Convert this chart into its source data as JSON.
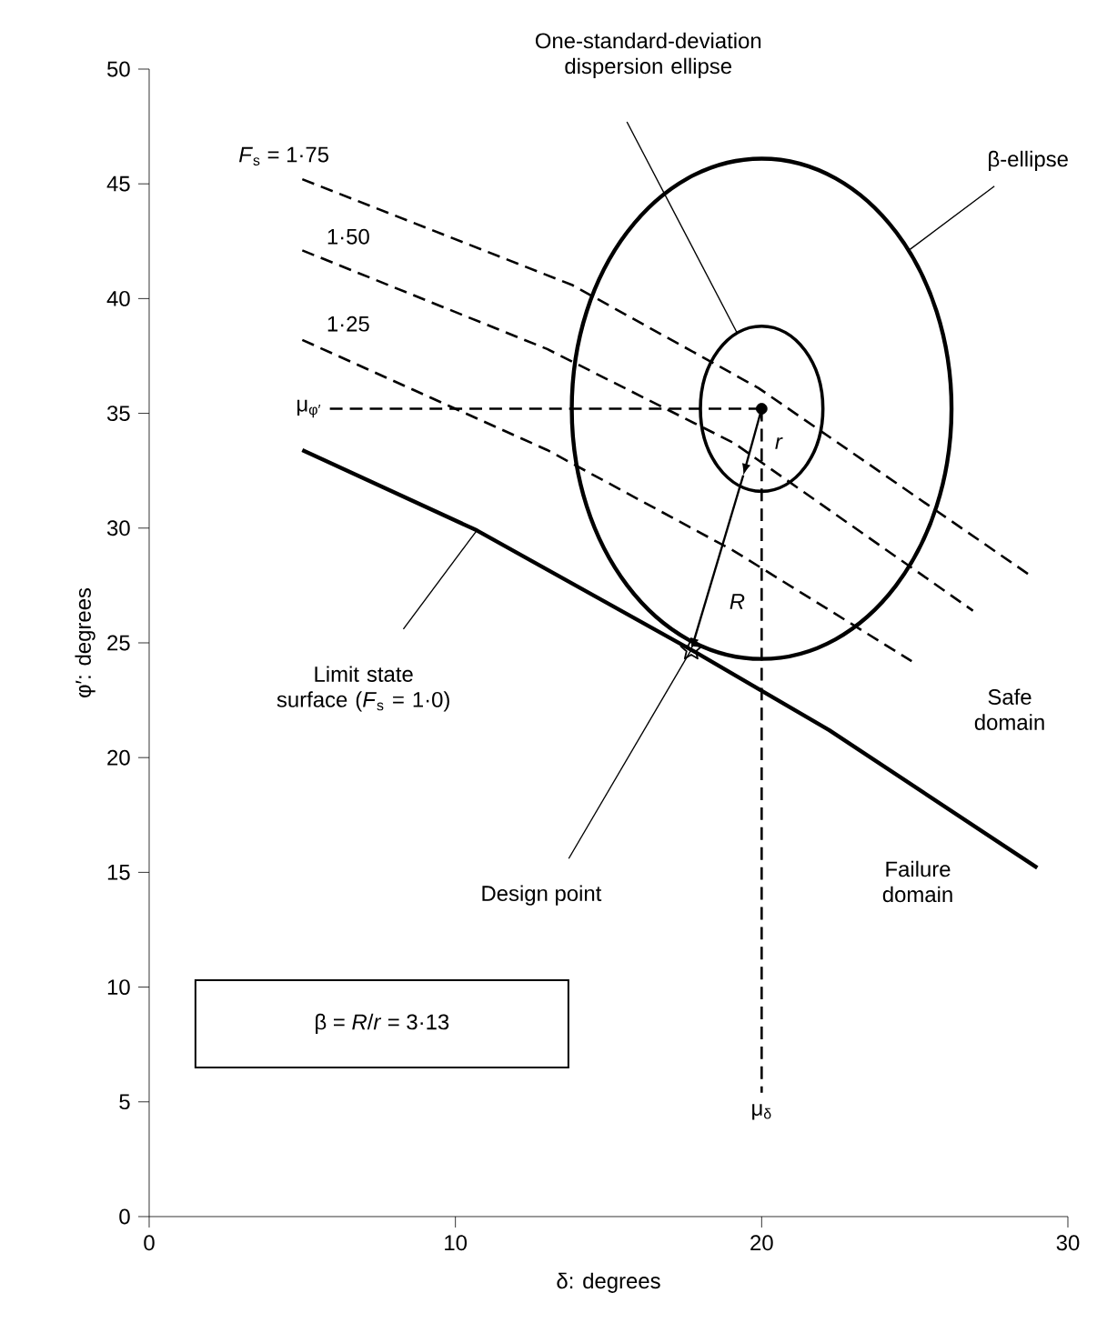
{
  "chart_data": {
    "type": "line",
    "xlabel": "δ: degrees",
    "ylabel": "φ′: degrees",
    "xlim": [
      0,
      30
    ],
    "ylim": [
      0,
      50
    ],
    "xticks": [
      0,
      10,
      20,
      30
    ],
    "yticks": [
      0,
      5,
      10,
      15,
      20,
      25,
      30,
      35,
      40,
      45,
      50
    ],
    "series": [
      {
        "name": "*F*$_{s}$ = 1·75",
        "color": "#000000",
        "line_style": "dashed",
        "x": [
          5,
          13.8,
          19.9,
          28.7
        ],
        "values": [
          45.2,
          40.6,
          36.1,
          28.0
        ]
      },
      {
        "name": "1·50",
        "color": "#000000",
        "line_style": "dashed",
        "x": [
          5,
          13,
          19.1,
          26.9
        ],
        "values": [
          42.1,
          37.8,
          33.7,
          26.4
        ]
      },
      {
        "name": "1·25",
        "color": "#000000",
        "line_style": "dashed",
        "x": [
          5,
          13,
          19.1,
          24.9
        ],
        "values": [
          38.2,
          33.4,
          29.0,
          24.2
        ]
      },
      {
        "color": "#000000",
        "line_style": "solid",
        "x": [
          5,
          10.7,
          17.7,
          22.2,
          29.0
        ],
        "values": [
          33.4,
          29.9,
          24.7,
          21.2,
          15.2
        ]
      },
      {
        "name": "μ$_{φ′}$",
        "color": "#000000",
        "line_style": "dashed",
        "x": [
          5.9,
          20
        ],
        "values": [
          35.2,
          35.2
        ]
      },
      {
        "name": "μ$_{δ}$",
        "color": "#000000",
        "line_style": "dashed",
        "x": [
          20,
          20
        ],
        "values": [
          35.2,
          5.4
        ]
      },
      {
        "type": "scatter",
        "marker": "circle",
        "color": "#000000",
        "x": [
          20
        ],
        "values": [
          35.2
        ]
      },
      {
        "type": "scatter",
        "marker": "star",
        "color": "#000000",
        "x": [
          17.7
        ],
        "values": [
          24.7
        ]
      }
    ],
    "annotations": [
      "Safe domain",
      "Failure domain",
      "β = *R*/*r* = 3·13",
      "Limit state surface (*F*$_{s}$ = 1·0)",
      "β-ellipse",
      "One-standard-deviation dispersion ellipse",
      {
        "text": "Design point",
        "x": 17.7,
        "y": 24.7
      },
      "r",
      {
        "text": "R",
        "x": 17.7,
        "y": 24.7
      }
    ]
  }
}
